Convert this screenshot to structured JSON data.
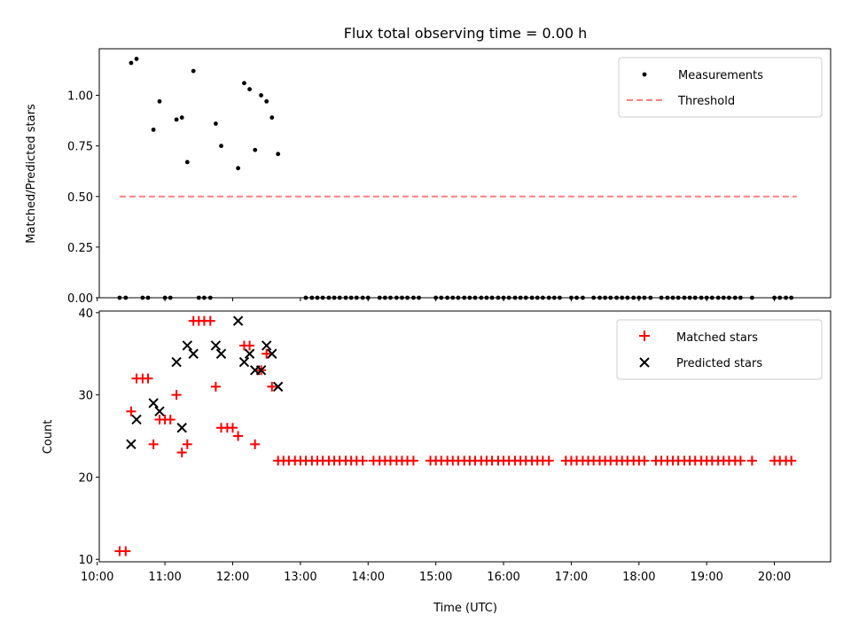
{
  "figure": {
    "title": "Flux total observing time = 0.00 h"
  },
  "chart_data": [
    {
      "type": "scatter",
      "panel": "top",
      "ylabel": "Matched/Predicted stars",
      "xlabel": "",
      "ylim": [
        0,
        1.23
      ],
      "yticks": [
        0.0,
        0.25,
        0.5,
        0.75,
        1.0
      ],
      "ytick_labels": [
        "0.00",
        "0.25",
        "0.50",
        "0.75",
        "1.00"
      ],
      "legend_position": "top-right",
      "grid": false,
      "series": [
        {
          "name": "Measurements",
          "marker": "dot",
          "color": "#000000",
          "points": [
            [
              10.5,
              1.16
            ],
            [
              10.58,
              1.18
            ],
            [
              10.83,
              0.83
            ],
            [
              10.92,
              0.97
            ],
            [
              11.17,
              0.88
            ],
            [
              11.25,
              0.89
            ],
            [
              11.33,
              0.67
            ],
            [
              11.42,
              1.12
            ],
            [
              11.75,
              0.86
            ],
            [
              11.83,
              0.75
            ],
            [
              12.08,
              0.64
            ],
            [
              12.17,
              1.06
            ],
            [
              12.25,
              1.03
            ],
            [
              12.33,
              0.73
            ],
            [
              12.42,
              1.0
            ],
            [
              12.5,
              0.97
            ],
            [
              12.58,
              0.89
            ],
            [
              12.67,
              0.71
            ],
            [
              10.33,
              0
            ],
            [
              10.42,
              0
            ],
            [
              10.67,
              0
            ],
            [
              10.75,
              0
            ],
            [
              11.0,
              0
            ],
            [
              11.08,
              0
            ],
            [
              11.5,
              0
            ],
            [
              11.58,
              0
            ],
            [
              11.67,
              0
            ],
            [
              13.08,
              0
            ],
            [
              13.17,
              0
            ],
            [
              13.25,
              0
            ],
            [
              13.33,
              0
            ],
            [
              13.42,
              0
            ],
            [
              13.5,
              0
            ],
            [
              13.58,
              0
            ],
            [
              13.67,
              0
            ],
            [
              13.75,
              0
            ],
            [
              13.83,
              0
            ],
            [
              13.92,
              0
            ],
            [
              14.0,
              0
            ],
            [
              14.17,
              0
            ],
            [
              14.25,
              0
            ],
            [
              14.33,
              0
            ],
            [
              14.42,
              0
            ],
            [
              14.5,
              0
            ],
            [
              14.58,
              0
            ],
            [
              14.67,
              0
            ],
            [
              14.75,
              0
            ],
            [
              15.0,
              0
            ],
            [
              15.08,
              0
            ],
            [
              15.17,
              0
            ],
            [
              15.25,
              0
            ],
            [
              15.33,
              0
            ],
            [
              15.42,
              0
            ],
            [
              15.5,
              0
            ],
            [
              15.58,
              0
            ],
            [
              15.67,
              0
            ],
            [
              15.75,
              0
            ],
            [
              15.83,
              0
            ],
            [
              15.92,
              0
            ],
            [
              16.0,
              0
            ],
            [
              16.08,
              0
            ],
            [
              16.17,
              0
            ],
            [
              16.25,
              0
            ],
            [
              16.33,
              0
            ],
            [
              16.42,
              0
            ],
            [
              16.5,
              0
            ],
            [
              16.58,
              0
            ],
            [
              16.67,
              0
            ],
            [
              16.75,
              0
            ],
            [
              16.83,
              0
            ],
            [
              17.0,
              0
            ],
            [
              17.08,
              0
            ],
            [
              17.17,
              0
            ],
            [
              17.33,
              0
            ],
            [
              17.42,
              0
            ],
            [
              17.5,
              0
            ],
            [
              17.58,
              0
            ],
            [
              17.67,
              0
            ],
            [
              17.75,
              0
            ],
            [
              17.83,
              0
            ],
            [
              17.92,
              0
            ],
            [
              18.0,
              0
            ],
            [
              18.08,
              0
            ],
            [
              18.17,
              0
            ],
            [
              18.33,
              0
            ],
            [
              18.42,
              0
            ],
            [
              18.5,
              0
            ],
            [
              18.58,
              0
            ],
            [
              18.67,
              0
            ],
            [
              18.75,
              0
            ],
            [
              18.83,
              0
            ],
            [
              18.92,
              0
            ],
            [
              19.0,
              0
            ],
            [
              19.08,
              0
            ],
            [
              19.17,
              0
            ],
            [
              19.25,
              0
            ],
            [
              19.33,
              0
            ],
            [
              19.42,
              0
            ],
            [
              19.5,
              0
            ],
            [
              19.67,
              0
            ],
            [
              20.0,
              0
            ],
            [
              20.08,
              0
            ],
            [
              20.17,
              0
            ],
            [
              20.25,
              0
            ]
          ]
        },
        {
          "name": "Threshold",
          "style": "dashed",
          "color": "#ff8080",
          "points": [
            [
              10.33,
              0.5
            ],
            [
              20.33,
              0.5
            ]
          ]
        }
      ]
    },
    {
      "type": "scatter",
      "panel": "bottom",
      "ylabel": "Count",
      "xlabel": "Time (UTC)",
      "ylim": [
        9.7,
        40.2
      ],
      "yticks": [
        10,
        20,
        30,
        40
      ],
      "ytick_labels": [
        "10",
        "20",
        "30",
        "40"
      ],
      "xlim": [
        10.03,
        20.83
      ],
      "xticks": [
        10,
        11,
        12,
        13,
        14,
        15,
        16,
        17,
        18,
        19,
        20
      ],
      "xtick_labels": [
        "10:00",
        "11:00",
        "12:00",
        "13:00",
        "14:00",
        "15:00",
        "16:00",
        "17:00",
        "18:00",
        "19:00",
        "20:00"
      ],
      "legend_position": "top-right",
      "grid": false,
      "series": [
        {
          "name": "Matched stars",
          "marker": "plus",
          "color": "#ff0000",
          "points": [
            [
              10.33,
              11
            ],
            [
              10.42,
              11
            ],
            [
              10.5,
              28
            ],
            [
              10.58,
              32
            ],
            [
              10.67,
              32
            ],
            [
              10.75,
              32
            ],
            [
              10.83,
              24
            ],
            [
              10.92,
              27
            ],
            [
              11.0,
              27
            ],
            [
              11.08,
              27
            ],
            [
              11.17,
              30
            ],
            [
              11.25,
              23
            ],
            [
              11.33,
              24
            ],
            [
              11.42,
              39
            ],
            [
              11.5,
              39
            ],
            [
              11.58,
              39
            ],
            [
              11.67,
              39
            ],
            [
              11.75,
              31
            ],
            [
              11.83,
              26
            ],
            [
              11.92,
              26
            ],
            [
              12.0,
              26
            ],
            [
              12.08,
              25
            ],
            [
              12.17,
              36
            ],
            [
              12.25,
              36
            ],
            [
              12.33,
              24
            ],
            [
              12.42,
              33
            ],
            [
              12.5,
              35
            ],
            [
              12.58,
              31
            ],
            [
              12.67,
              22
            ],
            [
              12.75,
              22
            ],
            [
              12.83,
              22
            ],
            [
              12.92,
              22
            ],
            [
              13.0,
              22
            ],
            [
              13.08,
              22
            ],
            [
              13.17,
              22
            ],
            [
              13.25,
              22
            ],
            [
              13.33,
              22
            ],
            [
              13.42,
              22
            ],
            [
              13.5,
              22
            ],
            [
              13.58,
              22
            ],
            [
              13.67,
              22
            ],
            [
              13.75,
              22
            ],
            [
              13.83,
              22
            ],
            [
              13.92,
              22
            ],
            [
              14.08,
              22
            ],
            [
              14.17,
              22
            ],
            [
              14.25,
              22
            ],
            [
              14.33,
              22
            ],
            [
              14.42,
              22
            ],
            [
              14.5,
              22
            ],
            [
              14.58,
              22
            ],
            [
              14.67,
              22
            ],
            [
              14.92,
              22
            ],
            [
              15.0,
              22
            ],
            [
              15.08,
              22
            ],
            [
              15.17,
              22
            ],
            [
              15.25,
              22
            ],
            [
              15.33,
              22
            ],
            [
              15.42,
              22
            ],
            [
              15.5,
              22
            ],
            [
              15.58,
              22
            ],
            [
              15.67,
              22
            ],
            [
              15.75,
              22
            ],
            [
              15.83,
              22
            ],
            [
              15.92,
              22
            ],
            [
              16.0,
              22
            ],
            [
              16.08,
              22
            ],
            [
              16.17,
              22
            ],
            [
              16.25,
              22
            ],
            [
              16.33,
              22
            ],
            [
              16.42,
              22
            ],
            [
              16.5,
              22
            ],
            [
              16.58,
              22
            ],
            [
              16.67,
              22
            ],
            [
              16.92,
              22
            ],
            [
              17.0,
              22
            ],
            [
              17.08,
              22
            ],
            [
              17.17,
              22
            ],
            [
              17.25,
              22
            ],
            [
              17.33,
              22
            ],
            [
              17.42,
              22
            ],
            [
              17.5,
              22
            ],
            [
              17.58,
              22
            ],
            [
              17.67,
              22
            ],
            [
              17.75,
              22
            ],
            [
              17.83,
              22
            ],
            [
              17.92,
              22
            ],
            [
              18.0,
              22
            ],
            [
              18.08,
              22
            ],
            [
              18.25,
              22
            ],
            [
              18.33,
              22
            ],
            [
              18.42,
              22
            ],
            [
              18.5,
              22
            ],
            [
              18.58,
              22
            ],
            [
              18.67,
              22
            ],
            [
              18.75,
              22
            ],
            [
              18.83,
              22
            ],
            [
              18.92,
              22
            ],
            [
              19.0,
              22
            ],
            [
              19.08,
              22
            ],
            [
              19.17,
              22
            ],
            [
              19.25,
              22
            ],
            [
              19.33,
              22
            ],
            [
              19.42,
              22
            ],
            [
              19.5,
              22
            ],
            [
              19.67,
              22
            ],
            [
              20.0,
              22
            ],
            [
              20.08,
              22
            ],
            [
              20.17,
              22
            ],
            [
              20.25,
              22
            ]
          ]
        },
        {
          "name": "Predicted stars",
          "marker": "x",
          "color": "#000000",
          "points": [
            [
              10.5,
              24
            ],
            [
              10.58,
              27
            ],
            [
              10.83,
              29
            ],
            [
              10.92,
              28
            ],
            [
              11.17,
              34
            ],
            [
              11.25,
              26
            ],
            [
              11.33,
              36
            ],
            [
              11.42,
              35
            ],
            [
              11.75,
              36
            ],
            [
              11.83,
              35
            ],
            [
              12.08,
              39
            ],
            [
              12.17,
              34
            ],
            [
              12.25,
              35
            ],
            [
              12.33,
              33
            ],
            [
              12.42,
              33
            ],
            [
              12.5,
              36
            ],
            [
              12.58,
              35
            ],
            [
              12.67,
              31
            ]
          ]
        }
      ]
    }
  ]
}
